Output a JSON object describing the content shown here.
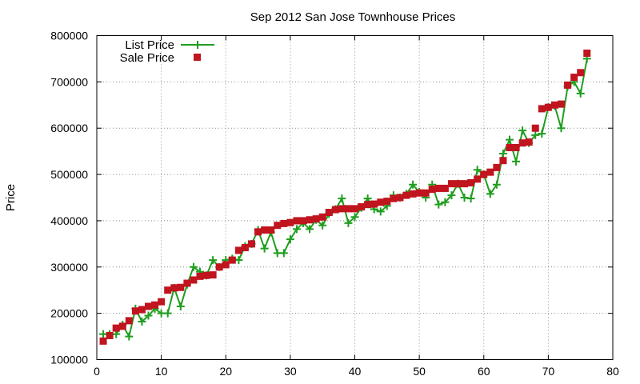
{
  "chart_data": {
    "type": "line",
    "title": "Sep 2012 San Jose Townhouse Prices",
    "xlabel": "",
    "ylabel": "Price",
    "xlim": [
      0,
      80
    ],
    "ylim": [
      100000,
      800000
    ],
    "x_ticks": [
      0,
      10,
      20,
      30,
      40,
      50,
      60,
      70,
      80
    ],
    "y_ticks": [
      100000,
      200000,
      300000,
      400000,
      500000,
      600000,
      700000,
      800000
    ],
    "grid": true,
    "legend_position": "top-left",
    "series": [
      {
        "name": "List Price",
        "color": "#1f9e1f",
        "style": "line-with-plus-markers",
        "x": [
          1,
          2,
          3,
          4,
          5,
          6,
          7,
          8,
          9,
          10,
          11,
          12,
          13,
          14,
          15,
          16,
          17,
          18,
          19,
          20,
          21,
          22,
          23,
          24,
          25,
          26,
          27,
          28,
          29,
          30,
          31,
          32,
          33,
          34,
          35,
          36,
          37,
          38,
          39,
          40,
          41,
          42,
          43,
          44,
          45,
          46,
          47,
          48,
          49,
          50,
          51,
          52,
          53,
          54,
          55,
          56,
          57,
          58,
          59,
          60,
          61,
          62,
          63,
          64,
          65,
          66,
          67,
          68,
          69,
          70,
          71,
          72,
          73,
          74,
          75,
          76
        ],
        "values": [
          155000,
          155000,
          155000,
          175000,
          150000,
          210000,
          182000,
          195000,
          210000,
          200000,
          200000,
          255000,
          215000,
          262000,
          300000,
          290000,
          282000,
          315000,
          300000,
          315000,
          318000,
          315000,
          345000,
          350000,
          380000,
          340000,
          375000,
          330000,
          330000,
          360000,
          382000,
          395000,
          382000,
          402000,
          390000,
          415000,
          425000,
          448000,
          395000,
          408000,
          428000,
          448000,
          425000,
          420000,
          432000,
          455000,
          450000,
          458000,
          478000,
          462000,
          450000,
          478000,
          435000,
          440000,
          455000,
          480000,
          450000,
          448000,
          510000,
          500000,
          458000,
          478000,
          545000,
          575000,
          528000,
          595000,
          568000,
          585000,
          588000,
          645000,
          648000,
          600000,
          690000,
          700000,
          675000,
          750000
        ]
      },
      {
        "name": "Sale Price",
        "color": "#c0141e",
        "style": "square-markers",
        "x": [
          1,
          2,
          3,
          4,
          5,
          6,
          7,
          8,
          9,
          10,
          11,
          12,
          13,
          14,
          15,
          16,
          17,
          18,
          19,
          20,
          21,
          22,
          23,
          24,
          25,
          26,
          27,
          28,
          29,
          30,
          31,
          32,
          33,
          34,
          35,
          36,
          37,
          38,
          39,
          40,
          41,
          42,
          43,
          44,
          45,
          46,
          47,
          48,
          49,
          50,
          51,
          52,
          53,
          54,
          55,
          56,
          57,
          58,
          59,
          60,
          61,
          62,
          63,
          64,
          65,
          66,
          67,
          68,
          69,
          70,
          71,
          72,
          73,
          74,
          75,
          76
        ],
        "values": [
          140000,
          152000,
          168000,
          172000,
          184000,
          205000,
          208000,
          215000,
          218000,
          225000,
          250000,
          255000,
          256000,
          265000,
          272000,
          280000,
          282000,
          283000,
          300000,
          305000,
          315000,
          336000,
          342000,
          350000,
          376000,
          380000,
          380000,
          390000,
          394000,
          396000,
          400000,
          400000,
          402000,
          404000,
          408000,
          418000,
          424000,
          426000,
          426000,
          426000,
          430000,
          435000,
          436000,
          440000,
          442000,
          448000,
          450000,
          455000,
          458000,
          460000,
          460000,
          468000,
          470000,
          470000,
          480000,
          480000,
          480000,
          482000,
          490000,
          500000,
          505000,
          515000,
          530000,
          558000,
          558000,
          568000,
          570000,
          600000,
          642000,
          645000,
          650000,
          652000,
          693000,
          710000,
          720000,
          762000
        ]
      }
    ]
  }
}
